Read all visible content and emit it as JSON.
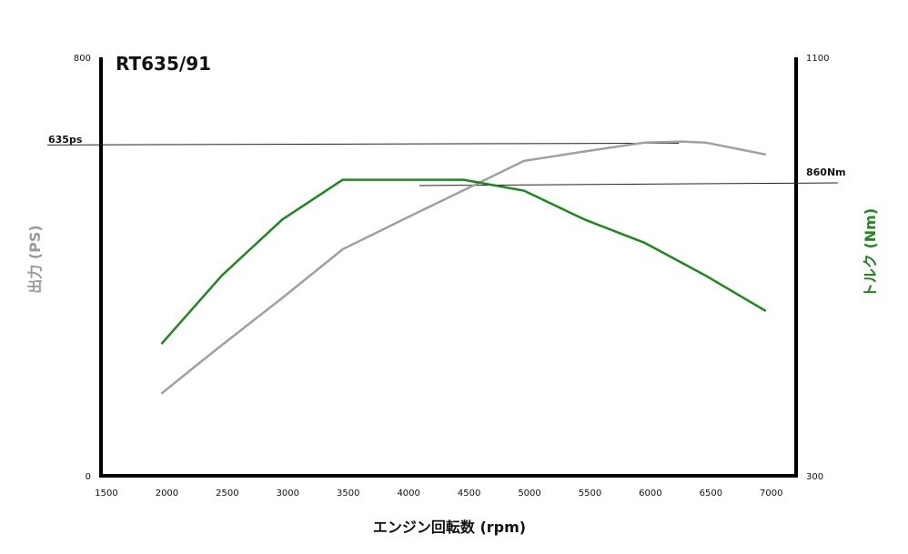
{
  "chart_data": {
    "type": "line",
    "title": "RT635/91",
    "xlabel": "エンジン回転数 (rpm)",
    "ylabel_left": "出力 (PS)",
    "ylabel_right": "トルク (Nm)",
    "x_ticks": [
      "1500",
      "2000",
      "2500",
      "3000",
      "3500",
      "4000",
      "4500",
      "5000",
      "5500",
      "6000",
      "6500",
      "7000"
    ],
    "xlim": [
      1500,
      7250
    ],
    "y_left": {
      "min_label": "0",
      "max_label": "800",
      "range": [
        0,
        800
      ]
    },
    "y_right": {
      "min_label": "300",
      "max_label": "1100",
      "range": [
        300,
        1100
      ]
    },
    "series": [
      {
        "name": "出力",
        "axis": "left",
        "color": "#a0a0a0",
        "x": [
          2000,
          2300,
          2500,
          3000,
          3500,
          4000,
          4500,
          5000,
          5500,
          6000,
          6300,
          6500,
          7000
        ],
        "y": [
          157,
          213,
          250,
          340,
          433,
          490,
          546,
          602,
          620,
          637,
          639,
          637,
          614
        ]
      },
      {
        "name": "トルク",
        "axis": "right",
        "color": "#1a8a1a",
        "x": [
          2000,
          2500,
          3000,
          3500,
          3550,
          4000,
          4500,
          5000,
          5500,
          6000,
          6500,
          7000
        ],
        "y": [
          552,
          683,
          790,
          866,
          866,
          866,
          866,
          845,
          790,
          745,
          683,
          615
        ]
      }
    ],
    "reference_lines": [
      {
        "label": "635ps",
        "axis": "left",
        "value": 635
      },
      {
        "label": "860Nm",
        "axis": "right",
        "value": 860
      }
    ],
    "grid": false,
    "legend": "none"
  }
}
